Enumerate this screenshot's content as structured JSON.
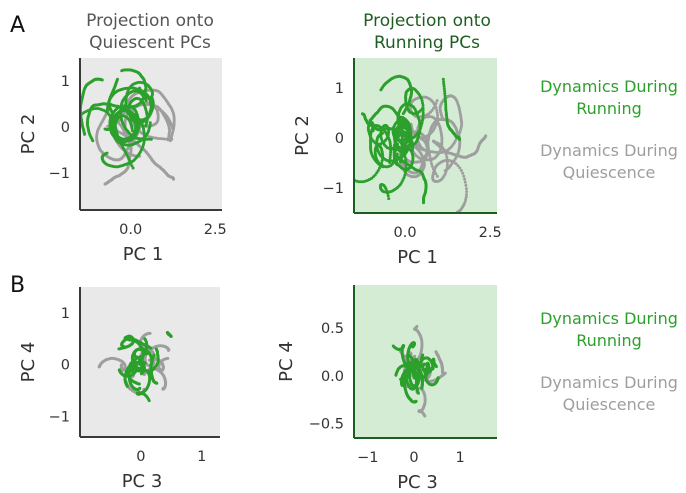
{
  "figure": {
    "panel_a_letter": "A",
    "panel_b_letter": "B",
    "col1_title_line1": "Projection onto",
    "col1_title_line2": "Quiescent PCs",
    "col2_title_line1": "Projection onto",
    "col2_title_line2": "Running PCs"
  },
  "legend": {
    "running_line1": "Dynamics During",
    "running_line2": "Running",
    "quiescence_line1": "Dynamics During",
    "quiescence_line2": "Quiescence"
  },
  "colors": {
    "running": "#2ca02c",
    "quiescence": "#9e9e9e",
    "quiescent_bg": "#e8e9e8",
    "running_bg": "#d4ecd4",
    "axis_gray": "#3a3a3a",
    "axis_green": "#1d5e20",
    "title_gray": "#555555",
    "title_green": "#1d5e20"
  },
  "chart_data": [
    {
      "type": "scatter",
      "id": "A-left",
      "xlabel": "PC 1",
      "ylabel": "PC 2",
      "xlim": [
        -1.5,
        2.7
      ],
      "ylim": [
        -1.8,
        1.5
      ],
      "xticks": [
        {
          "v": 0,
          "label": "0.0"
        },
        {
          "v": 2.5,
          "label": "2.5"
        }
      ],
      "yticks": [
        {
          "v": 1,
          "label": "1"
        },
        {
          "v": 0,
          "label": "0"
        },
        {
          "v": -1,
          "label": "−1"
        }
      ],
      "bg": "quiescent",
      "series": [
        {
          "color": "quiescence",
          "seed": 11,
          "cx": 0.2,
          "cy": 0.0,
          "sx": 0.95,
          "sy": 0.55,
          "n": 7,
          "len": 70,
          "step": 0.09
        },
        {
          "color": "running",
          "seed": 12,
          "cx": -0.1,
          "cy": 0.15,
          "sx": 0.8,
          "sy": 0.55,
          "n": 14,
          "len": 60,
          "step": 0.085
        }
      ]
    },
    {
      "type": "scatter",
      "id": "A-right",
      "xlabel": "PC 1",
      "ylabel": "PC 2",
      "xlim": [
        -1.5,
        2.7
      ],
      "ylim": [
        -1.5,
        1.6
      ],
      "xticks": [
        {
          "v": 0,
          "label": "0.0"
        },
        {
          "v": 2.5,
          "label": "2.5"
        }
      ],
      "yticks": [
        {
          "v": 1,
          "label": "1"
        },
        {
          "v": 0,
          "label": "0"
        },
        {
          "v": -1,
          "label": "−1"
        }
      ],
      "bg": "running",
      "series": [
        {
          "color": "quiescence",
          "seed": 21,
          "cx": 0.5,
          "cy": 0.0,
          "sx": 0.9,
          "sy": 0.6,
          "n": 8,
          "len": 70,
          "step": 0.09
        },
        {
          "color": "running",
          "seed": 22,
          "cx": 0.0,
          "cy": 0.0,
          "sx": 0.75,
          "sy": 0.6,
          "n": 15,
          "len": 60,
          "step": 0.085
        }
      ]
    },
    {
      "type": "scatter",
      "id": "B-left",
      "xlabel": "PC 3",
      "ylabel": "PC 4",
      "xlim": [
        -1.0,
        1.3
      ],
      "ylim": [
        -1.4,
        1.5
      ],
      "xticks": [
        {
          "v": 0,
          "label": "0"
        },
        {
          "v": 1,
          "label": "1"
        }
      ],
      "yticks": [
        {
          "v": 1,
          "label": "1"
        },
        {
          "v": 0,
          "label": "0"
        },
        {
          "v": -1,
          "label": "−1"
        }
      ],
      "bg": "quiescent",
      "series": [
        {
          "color": "quiescence",
          "seed": 31,
          "cx": 0.0,
          "cy": 0.0,
          "sx": 0.4,
          "sy": 0.35,
          "n": 8,
          "len": 55,
          "step": 0.05
        },
        {
          "color": "running",
          "seed": 32,
          "cx": 0.0,
          "cy": 0.05,
          "sx": 0.4,
          "sy": 0.4,
          "n": 14,
          "len": 55,
          "step": 0.05
        }
      ]
    },
    {
      "type": "scatter",
      "id": "B-right",
      "xlabel": "PC 3",
      "ylabel": "PC 4",
      "xlim": [
        -1.3,
        1.8
      ],
      "ylim": [
        -0.65,
        0.95
      ],
      "xticks": [
        {
          "v": -1,
          "label": "−1"
        },
        {
          "v": 0,
          "label": "0"
        },
        {
          "v": 1,
          "label": "1"
        }
      ],
      "yticks": [
        {
          "v": 0.5,
          "label": "0.5"
        },
        {
          "v": 0,
          "label": "0.0"
        },
        {
          "v": -0.5,
          "label": "−0.5"
        }
      ],
      "bg": "running",
      "series": [
        {
          "color": "quiescence",
          "seed": 41,
          "cx": 0.1,
          "cy": 0.0,
          "sx": 0.45,
          "sy": 0.25,
          "n": 8,
          "len": 55,
          "step": 0.045
        },
        {
          "color": "running",
          "seed": 42,
          "cx": 0.05,
          "cy": 0.05,
          "sx": 0.4,
          "sy": 0.28,
          "n": 15,
          "len": 55,
          "step": 0.04
        }
      ]
    }
  ]
}
